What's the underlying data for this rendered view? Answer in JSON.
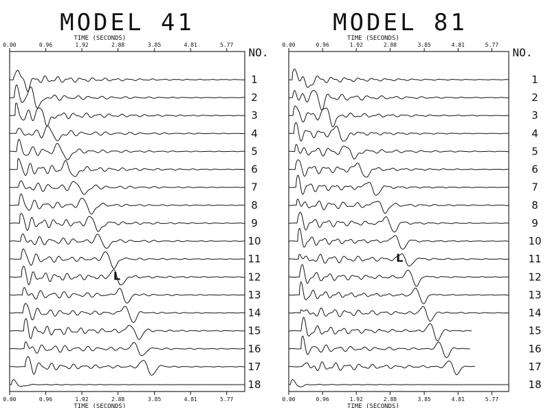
{
  "chart_data": [
    {
      "type": "line",
      "title": "MODEL 41",
      "xlabel": "TIME (SECONDS)",
      "top_axis_label": "TIME (SECONDS)",
      "x_ticks": [
        "0.00",
        "0.96",
        "1.92",
        "2.88",
        "3.85",
        "4.81",
        "5.77"
      ],
      "xlim": [
        0,
        6.25
      ],
      "trace_number_header": "NO.",
      "trace_numbers": [
        "1",
        "2",
        "3",
        "4",
        "5",
        "6",
        "7",
        "8",
        "9",
        "10",
        "11",
        "12",
        "13",
        "14",
        "15",
        "16",
        "17",
        "18"
      ],
      "first_arrival_s": [
        0.1,
        0.12,
        0.15,
        0.17,
        0.19,
        0.21,
        0.23,
        0.25,
        0.27,
        0.29,
        0.31,
        0.32,
        0.34,
        0.36,
        0.38,
        0.39,
        0.41,
        0.05
      ],
      "main_pulse_s": [
        0.4,
        0.7,
        0.95,
        1.2,
        1.45,
        1.65,
        1.9,
        2.1,
        2.3,
        2.5,
        2.7,
        2.9,
        3.05,
        3.2,
        3.35,
        3.45,
        3.7,
        0.3
      ],
      "trace_end_s": [
        6.25,
        6.25,
        6.25,
        6.25,
        6.25,
        6.25,
        6.25,
        6.25,
        6.25,
        6.25,
        6.25,
        6.25,
        6.25,
        6.25,
        6.25,
        6.25,
        6.25,
        6.25
      ],
      "annotation": {
        "text": "L",
        "trace": "12",
        "time_s": 2.85
      },
      "grid": false
    },
    {
      "type": "line",
      "title": "MODEL 81",
      "xlabel": "TIME (SECONDS)",
      "top_axis_label": "TIME (SECONDS)",
      "x_ticks": [
        "0.00",
        "0.96",
        "1.92",
        "2.88",
        "3.85",
        "4.81",
        "5.77"
      ],
      "xlim": [
        0,
        6.25
      ],
      "trace_number_header": "NO.",
      "trace_numbers": [
        "1",
        "2",
        "3",
        "4",
        "5",
        "6",
        "7",
        "8",
        "9",
        "10",
        "11",
        "12",
        "13",
        "14",
        "15",
        "16",
        "17",
        "18"
      ],
      "first_arrival_s": [
        0.1,
        0.11,
        0.13,
        0.15,
        0.17,
        0.19,
        0.21,
        0.22,
        0.24,
        0.26,
        0.28,
        0.3,
        0.31,
        0.33,
        0.35,
        0.36,
        0.38,
        0.05
      ],
      "main_pulse_s": [
        0.45,
        0.85,
        1.2,
        1.5,
        1.8,
        2.1,
        2.4,
        2.65,
        2.9,
        3.15,
        3.35,
        3.55,
        3.75,
        3.95,
        4.15,
        4.4,
        4.7,
        0.3
      ],
      "trace_end_s": [
        6.25,
        6.25,
        6.25,
        6.25,
        6.25,
        6.25,
        6.25,
        6.25,
        6.25,
        6.25,
        6.25,
        6.25,
        6.25,
        6.25,
        5.2,
        5.15,
        5.3,
        6.25
      ],
      "annotation": {
        "text": "L",
        "trace": "11",
        "time_s": 3.15
      },
      "grid": false
    }
  ]
}
